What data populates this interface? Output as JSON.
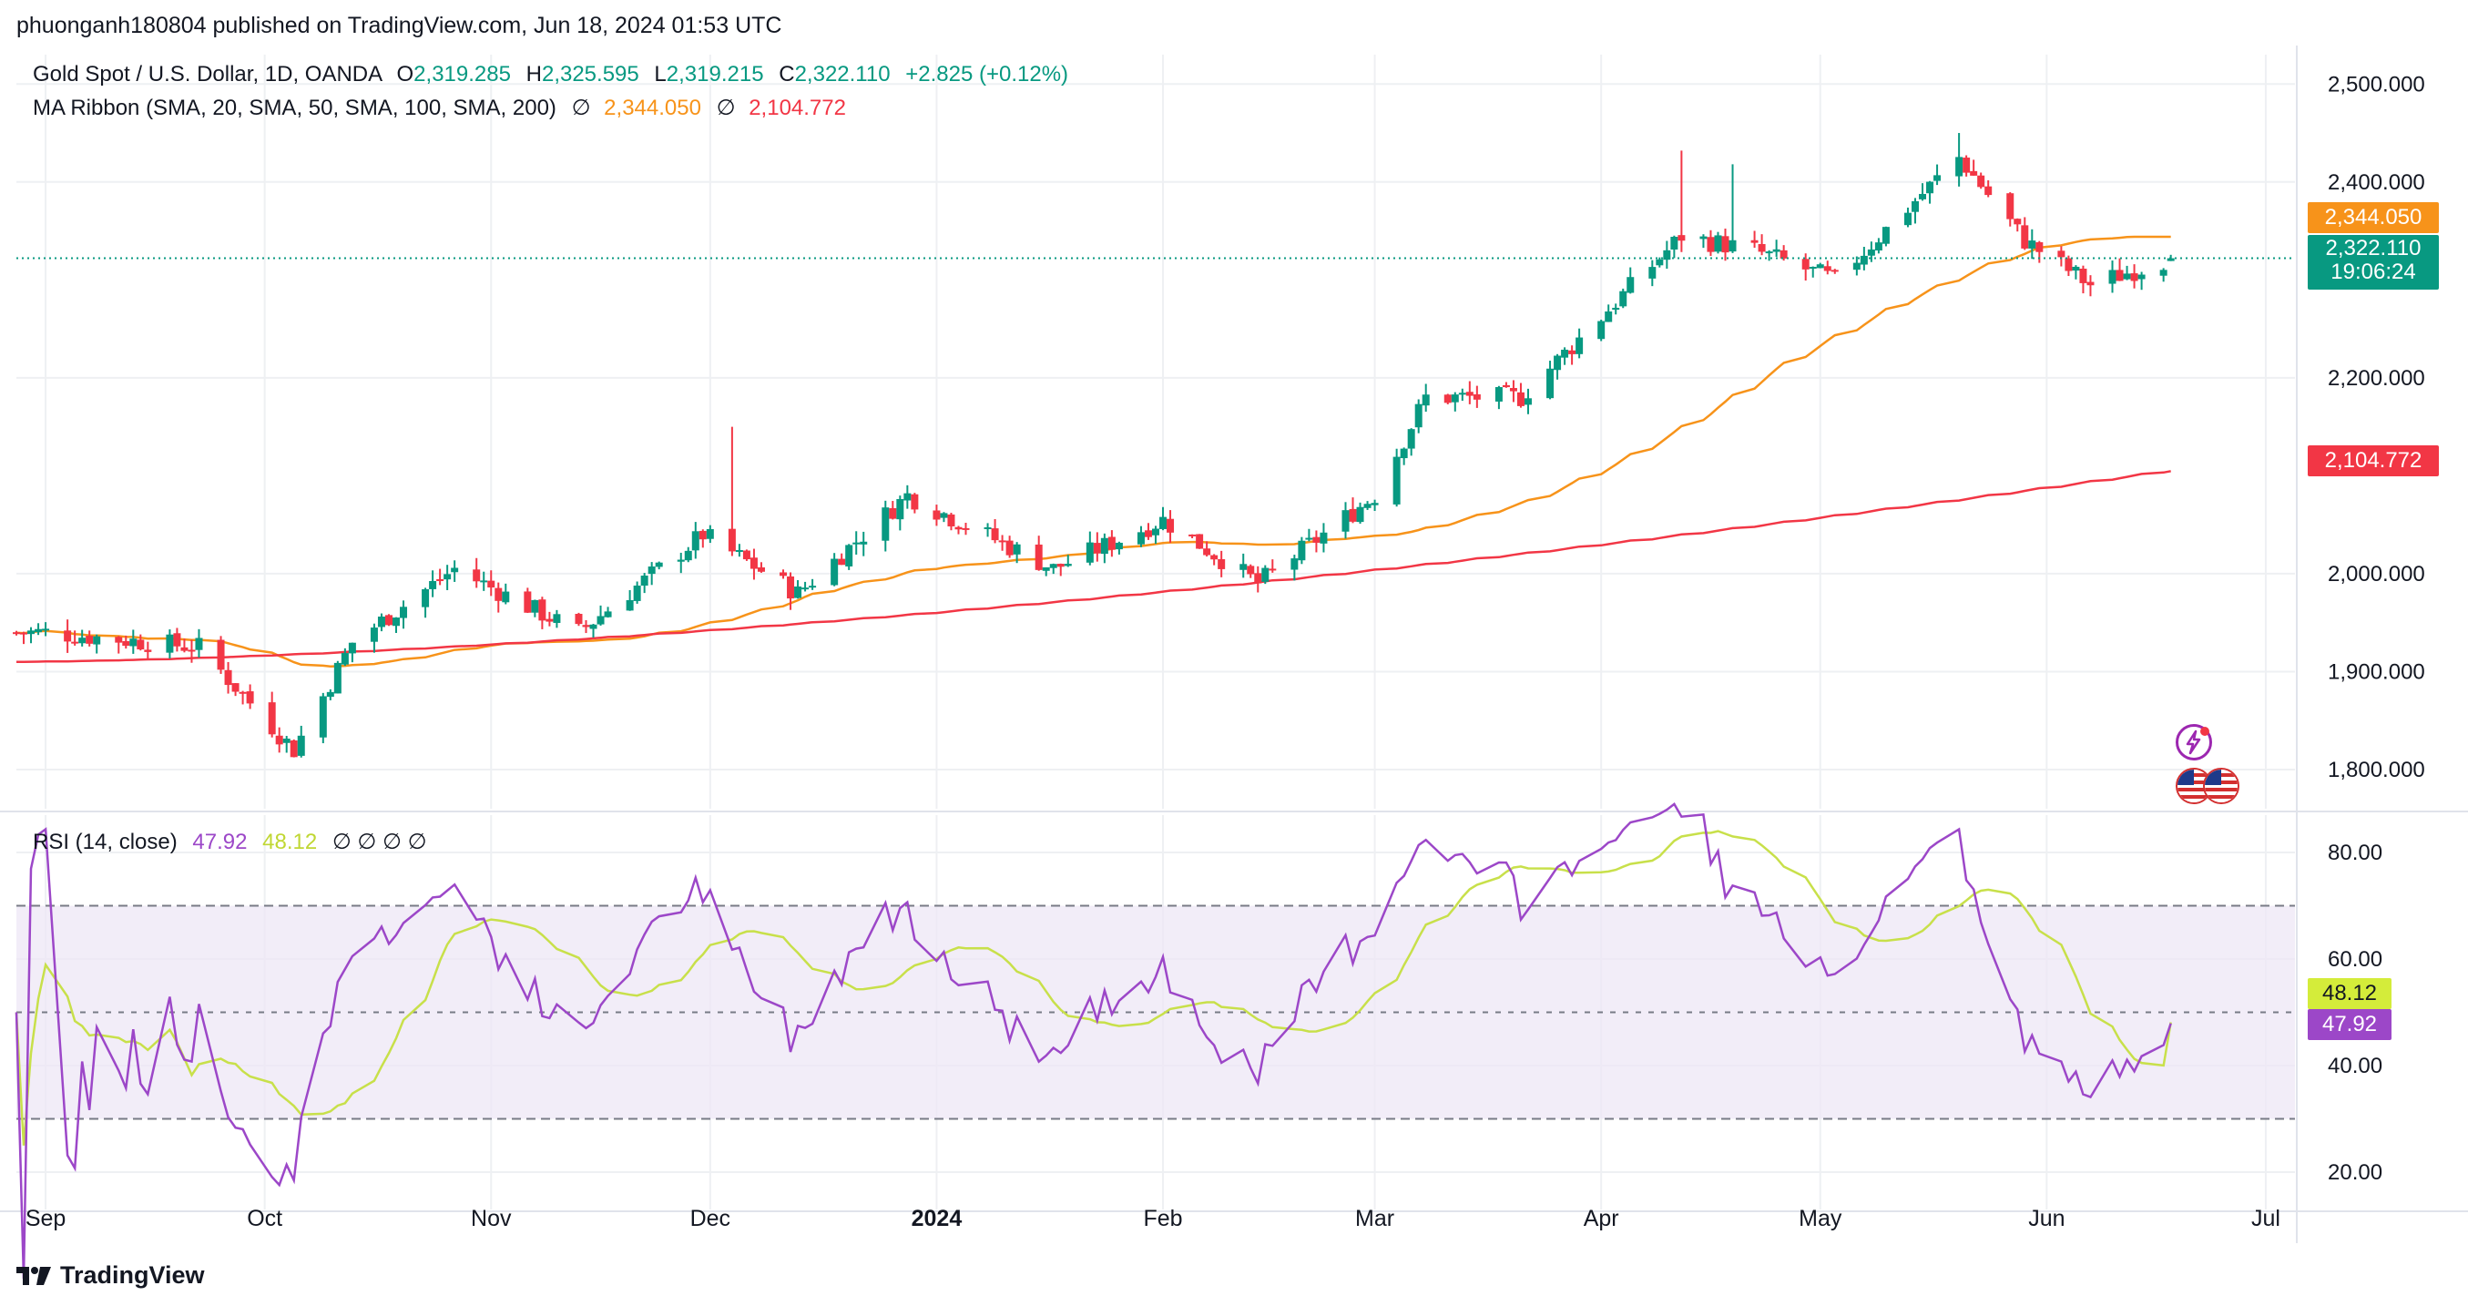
{
  "header": {
    "published": "phuonganh180804 published on TradingView.com, Jun 18, 2024 01:53 UTC"
  },
  "legend": {
    "symbol": "Gold Spot / U.S. Dollar, 1D, OANDA",
    "o_label": "O",
    "o_value": "2,319.285",
    "h_label": "H",
    "h_value": "2,325.595",
    "l_label": "L",
    "l_value": "2,319.215",
    "c_label": "C",
    "c_value": "2,322.110",
    "change": "+2.825 (+0.12%)",
    "ma_title": "MA Ribbon (SMA, 20, SMA, 50, SMA, 100, SMA, 200)",
    "ma_null": "∅",
    "ma_val1": "2,344.050",
    "ma_val2": "2,104.772",
    "rsi_title": "RSI (14, close)",
    "rsi_val": "47.92",
    "rsi_ma_val": "48.12",
    "rsi_nulls": "∅ ∅ ∅ ∅"
  },
  "price_axis": {
    "ticks": [
      "2,500.000",
      "2,400.000",
      "2,200.000",
      "2,000.000",
      "1,900.000",
      "1,800.000"
    ],
    "badge_ma_orange": "2,344.050",
    "badge_price": "2,322.110",
    "badge_countdown": "19:06:24",
    "badge_ma_red": "2,104.772"
  },
  "rsi_axis": {
    "ticks": [
      "80.00",
      "60.00",
      "40.00",
      "20.00"
    ],
    "badge_rsi_ma": "48.12",
    "badge_rsi": "47.92"
  },
  "time_axis": {
    "labels": [
      "Sep",
      "Oct",
      "Nov",
      "Dec",
      "2024",
      "Feb",
      "Mar",
      "Apr",
      "May",
      "Jun",
      "Jul"
    ]
  },
  "brand": {
    "name": "TradingView"
  },
  "colors": {
    "up": "#089981",
    "down": "#f23645",
    "ma_fast": "#f7931a",
    "ma_slow": "#f23645",
    "rsi": "#9c47c8",
    "rsi_ma": "#c8e04a",
    "band": "#ede7f6",
    "grid": "#eef0f3"
  },
  "icons": {
    "flash": "lightning-bolt-icon",
    "events": "us-flag-icon"
  },
  "chart_data": [
    {
      "type": "candlestick",
      "title": "Gold Spot / U.S. Dollar, 1D, OANDA",
      "ylim": [
        1760,
        2530
      ],
      "x_start": "2023-08-28",
      "x_end": "2024-07-05",
      "last": {
        "date": "2024-06-18",
        "open": 2319.285,
        "high": 2325.595,
        "low": 2319.215,
        "close": 2322.11,
        "change": 2.825,
        "change_pct": 0.12
      },
      "approx_closes_by_month_anchor": [
        {
          "date": "2023-09-01",
          "close": 1940
        },
        {
          "date": "2023-09-22",
          "close": 1925
        },
        {
          "date": "2023-10-05",
          "close": 1820
        },
        {
          "date": "2023-10-13",
          "close": 1930
        },
        {
          "date": "2023-10-27",
          "close": 2005
        },
        {
          "date": "2023-11-13",
          "close": 1940
        },
        {
          "date": "2023-11-30",
          "close": 2040
        },
        {
          "date": "2023-12-13",
          "close": 1980
        },
        {
          "date": "2023-12-28",
          "close": 2080
        },
        {
          "date": "2024-01-17",
          "close": 2005
        },
        {
          "date": "2024-02-01",
          "close": 2055
        },
        {
          "date": "2024-02-14",
          "close": 1990
        },
        {
          "date": "2024-03-01",
          "close": 2080
        },
        {
          "date": "2024-03-08",
          "close": 2180
        },
        {
          "date": "2024-03-21",
          "close": 2180
        },
        {
          "date": "2024-04-12",
          "close": 2345
        },
        {
          "date": "2024-04-22",
          "close": 2330
        },
        {
          "date": "2024-05-03",
          "close": 2300
        },
        {
          "date": "2024-05-20",
          "close": 2425
        },
        {
          "date": "2024-05-29",
          "close": 2340
        },
        {
          "date": "2024-06-07",
          "close": 2295
        },
        {
          "date": "2024-06-18",
          "close": 2322.11
        }
      ],
      "ma_ribbon": {
        "sma50_last": 2344.05,
        "sma200_last": 2104.772
      }
    },
    {
      "type": "line",
      "title": "RSI (14, close)",
      "ylim": [
        13,
        87
      ],
      "bands": [
        30,
        50,
        70
      ],
      "last": {
        "rsi": 47.92,
        "rsi_ma": 48.12
      }
    }
  ]
}
